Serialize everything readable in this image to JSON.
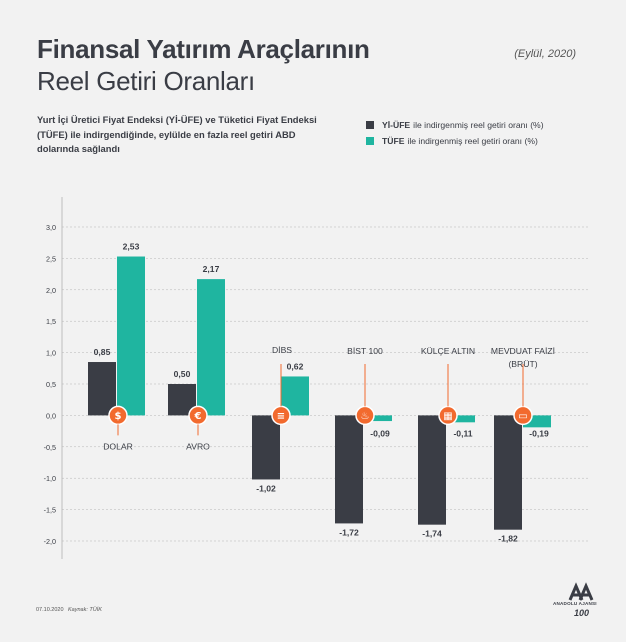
{
  "header": {
    "title_line1": "Finansal Yatırım Araçlarının",
    "title_line2": "Reel Getiri Oranları",
    "date": "(Eylül, 2020)",
    "subtitle": "Yurt İçi Üretici Fiyat Endeksi (Yİ-ÜFE) ve Tüketici Fiyat Endeksi (TÜFE) ile indirgendiğinde, eylülde en fazla reel getiri ABD dolarında sağlandı"
  },
  "legend": [
    {
      "key": "Yİ-ÜFE",
      "text": "ile indirgenmiş reel getiri oranı (%)",
      "color": "#3a3d45"
    },
    {
      "key": "TÜFE",
      "text": "ile indirgenmiş reel getiri oranı (%)",
      "color": "#1fb5a0"
    }
  ],
  "footer": {
    "date": "07.10.2020",
    "source": "Kaynak: TÜİK",
    "logo_text": "ANADOLU AJANSI",
    "logo_badge": "100"
  },
  "chart_data": {
    "type": "bar",
    "categories": [
      "DOLAR",
      "AVRO",
      "DİBS",
      "BİST 100",
      "KÜLÇE ALTIN",
      "MEVDUAT FAİZİ (BRÜT)"
    ],
    "category_icons": [
      "dollar-icon",
      "euro-icon",
      "document-icon",
      "fire-icon",
      "gold-bars-icon",
      "banknote-icon"
    ],
    "series": [
      {
        "name": "Yİ-ÜFE",
        "values": [
          0.85,
          0.5,
          -1.02,
          -1.72,
          -1.74,
          -1.82
        ],
        "labels": [
          "0,85",
          "0,50",
          "-1,02",
          "-1,72",
          "-1,74",
          "-1,82"
        ],
        "color": "#3a3d45"
      },
      {
        "name": "TÜFE",
        "values": [
          2.53,
          2.17,
          0.62,
          -0.09,
          -0.11,
          -0.19
        ],
        "labels": [
          "2,53",
          "2,17",
          "0,62",
          "-0,09",
          "-0,11",
          "-0,19"
        ],
        "color": "#1fb5a0"
      }
    ],
    "ylim": [
      -2.0,
      3.0
    ],
    "yticks": [
      3.0,
      2.5,
      2.0,
      1.5,
      1.0,
      0.5,
      0.0,
      -0.5,
      -1.0,
      -1.5,
      -2.0
    ],
    "ytick_labels": [
      "3,0",
      "2,5",
      "2,0",
      "1,5",
      "1,0",
      "0,5",
      "0,0",
      "-0,5",
      "-1,0",
      "-1,5",
      "-2,0"
    ],
    "grid": true,
    "icon_color": "#f26a2e"
  }
}
